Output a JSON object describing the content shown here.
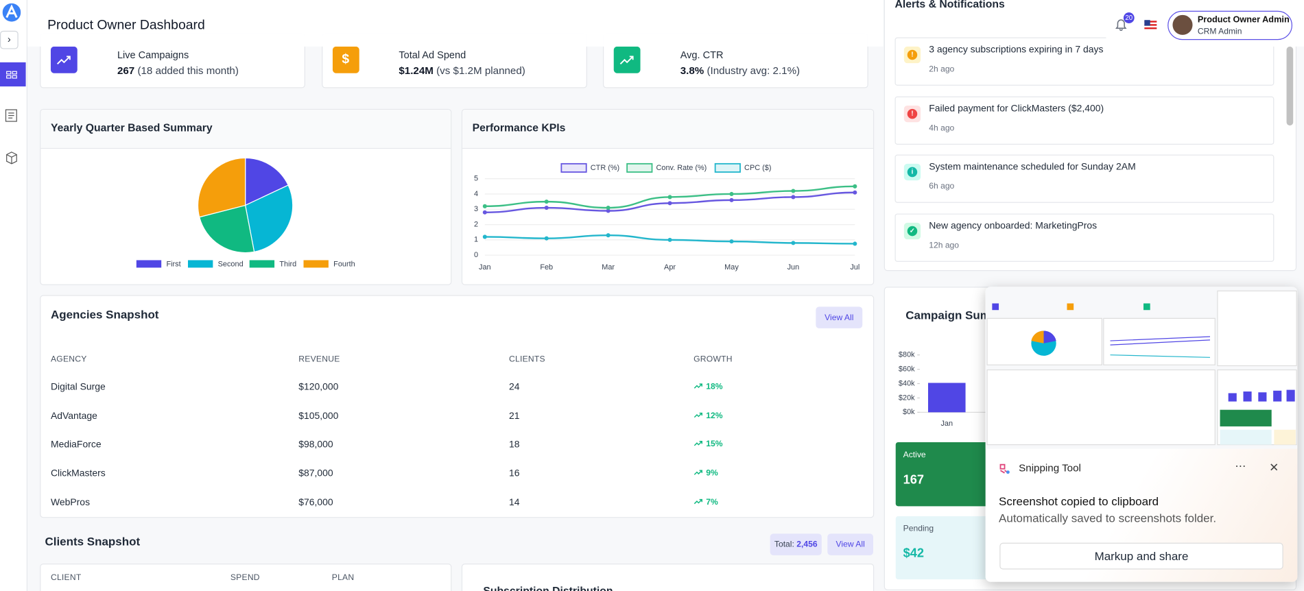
{
  "header": {
    "title": "Product Owner Dashboard",
    "notification_count": "20",
    "user_name": "Product Owner Admin",
    "user_role": "CRM Admin"
  },
  "stats": [
    {
      "label": "Live Campaigns",
      "value": "267",
      "note": "(18 added this month)"
    },
    {
      "label": "Total Ad Spend",
      "value": "$1.24M",
      "note": "(vs $1.2M planned)"
    },
    {
      "label": "Avg. CTR",
      "value": "3.8%",
      "note": "(Industry avg: 2.1%)"
    }
  ],
  "pie": {
    "type": "pie",
    "title": "Yearly Quarter Based Summary",
    "categories": [
      "First",
      "Second",
      "Third",
      "Fourth"
    ],
    "values": [
      18,
      29,
      24,
      29
    ],
    "colors": [
      "#5046e5",
      "#06b6d4",
      "#10b981",
      "#f59e0b"
    ]
  },
  "kpi": {
    "type": "line",
    "title": "Performance KPIs",
    "categories": [
      "Jan",
      "Feb",
      "Mar",
      "Apr",
      "May",
      "Jun",
      "Jul"
    ],
    "ylim": [
      0,
      5
    ],
    "yticks": [
      0,
      1,
      2,
      3,
      4,
      5
    ],
    "series": [
      {
        "name": "CTR (%)",
        "color": "#6757e0",
        "values": [
          2.8,
          3.1,
          2.9,
          3.4,
          3.6,
          3.8,
          4.1
        ]
      },
      {
        "name": "Conv. Rate (%)",
        "color": "#3cbf86",
        "values": [
          3.2,
          3.5,
          3.1,
          3.8,
          4.0,
          4.2,
          4.5
        ]
      },
      {
        "name": "CPC ($)",
        "color": "#23b6cc",
        "values": [
          1.2,
          1.1,
          1.3,
          1.0,
          0.9,
          0.8,
          0.75
        ]
      }
    ]
  },
  "agencies": {
    "title": "Agencies Snapshot",
    "button": "View All",
    "columns": [
      "AGENCY",
      "REVENUE",
      "CLIENTS",
      "GROWTH"
    ],
    "rows": [
      [
        "Digital Surge",
        "$120,000",
        "24",
        "18%"
      ],
      [
        "AdVantage",
        "$105,000",
        "21",
        "12%"
      ],
      [
        "MediaForce",
        "$98,000",
        "18",
        "15%"
      ],
      [
        "ClickMasters",
        "$87,000",
        "16",
        "9%"
      ],
      [
        "WebPros",
        "$76,000",
        "14",
        "7%"
      ]
    ]
  },
  "clients": {
    "title": "Clients Snapshot",
    "total_label": "Total:",
    "total": "2,456",
    "button": "View All",
    "columns": [
      "CLIENT",
      "SPEND",
      "PLAN"
    ]
  },
  "subscription": {
    "title": "Subscription Distribution"
  },
  "alerts": {
    "title": "Alerts & Notifications",
    "items": [
      {
        "text": "3 agency subscriptions expiring in 7 days",
        "time": "2h ago"
      },
      {
        "text": "Failed payment for ClickMasters ($2,400)",
        "time": "4h ago"
      },
      {
        "text": "System maintenance scheduled for Sunday 2AM",
        "time": "6h ago"
      },
      {
        "text": "New agency onboarded: MarketingPros",
        "time": "12h ago"
      }
    ]
  },
  "campaign": {
    "type": "bar",
    "title": "Campaign Summary",
    "categories": [
      "Jan"
    ],
    "values": [
      41000
    ],
    "color": "#5046e5",
    "ylim": [
      0,
      80000
    ],
    "yticks": [
      {
        "value": 0,
        "label": "$0k"
      },
      {
        "value": 20000,
        "label": "$20k"
      },
      {
        "value": 40000,
        "label": "$40k"
      },
      {
        "value": 60000,
        "label": "$60k"
      },
      {
        "value": 80000,
        "label": "$80k"
      }
    ],
    "active_label": "Active",
    "active": "167",
    "pending_label": "Pending",
    "pending": "$42"
  },
  "snipping": {
    "app": "Snipping Tool",
    "message": "Screenshot copied to clipboard",
    "detail": "Automatically saved to screenshots folder.",
    "button": "Markup and share"
  }
}
